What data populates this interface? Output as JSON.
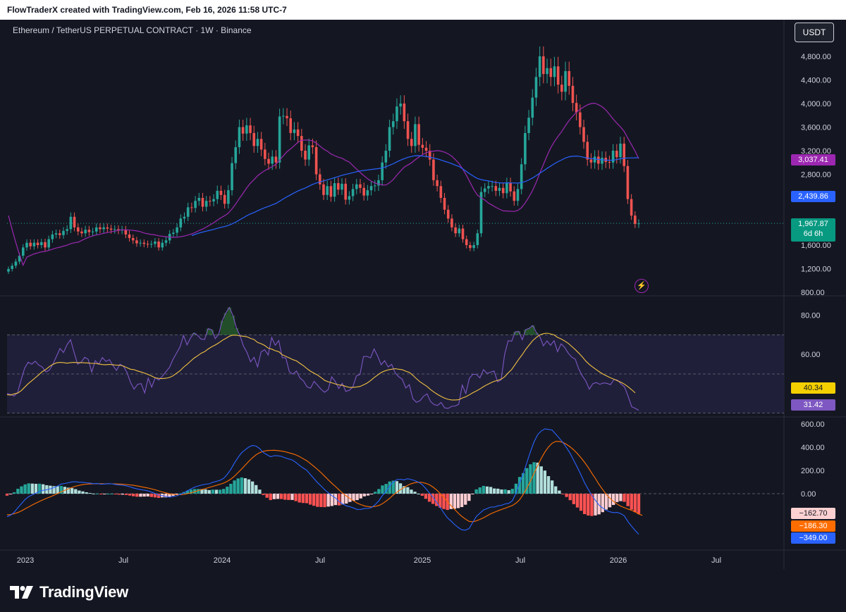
{
  "header": {
    "credit": "FlowTraderX created with TradingView.com, Feb 16, 2026 11:58 UTC-7"
  },
  "chart_header": {
    "symbol_line": "Ethereum / TetherUS PERPETUAL CONTRACT · 1W · Binance",
    "currency_button": "USDT"
  },
  "footer": {
    "logo_text": "TradingView"
  },
  "colors": {
    "background": "#141722",
    "up": "#26a69a",
    "down": "#ef5350",
    "ma_fast": "#9c27b0",
    "ma_slow": "#2962ff",
    "rsi_line": "#7e57c2",
    "rsi_ma": "#f0c040",
    "macd_line": "#2962ff",
    "signal_line": "#ff6d00"
  },
  "chart_data": [
    {
      "type": "candlestick",
      "title": "Ethereum / TetherUS PERPETUAL CONTRACT · 1W · Binance",
      "x_ticks": [
        "2023",
        "Jul",
        "2024",
        "Jul",
        "2025",
        "Jul",
        "2026",
        "Jul"
      ],
      "y_ticks": [
        "4,800.00",
        "4,400.00",
        "4,000.00",
        "3,600.00",
        "3,200.00",
        "2,800.00",
        "1,600.00",
        "1,200.00",
        "800.00"
      ],
      "ylim": [
        800,
        4800
      ],
      "price_tags": {
        "ma_fast": "3,037.41",
        "ma_slow": "2,439.86",
        "last": "1,967.87",
        "countdown": "6d 6h"
      },
      "closes": [
        1195,
        1250,
        1320,
        1420,
        1560,
        1640,
        1580,
        1640,
        1600,
        1650,
        1560,
        1700,
        1780,
        1800,
        1770,
        1840,
        1870,
        2080,
        1900,
        1830,
        1800,
        1860,
        1820,
        1830,
        1900,
        1870,
        1900,
        1880,
        1860,
        1870,
        1850,
        1860,
        1780,
        1720,
        1680,
        1630,
        1640,
        1620,
        1610,
        1620,
        1660,
        1560,
        1640,
        1680,
        1790,
        1810,
        1900,
        2050,
        2080,
        2240,
        2230,
        2350,
        2400,
        2250,
        2350,
        2340,
        2380,
        2520,
        2450,
        2300,
        2530,
        2990,
        3260,
        3600,
        3490,
        3630,
        3500,
        3280,
        3400,
        3220,
        3060,
        2980,
        3100,
        3000,
        3780,
        3790,
        3750,
        3500,
        3560,
        3450,
        3200,
        3050,
        3290,
        3260,
        2800,
        2630,
        2450,
        2600,
        2420,
        2650,
        2540,
        2640,
        2370,
        2430,
        2550,
        2630,
        2570,
        2440,
        2530,
        2600,
        2610,
        2700,
        3000,
        3200,
        3600,
        3700,
        3950,
        4000,
        3700,
        3400,
        3280,
        3650,
        3300,
        3250,
        3200,
        3050,
        2700,
        2600,
        2400,
        2200,
        2050,
        1900,
        1800,
        1880,
        1700,
        1600,
        1550,
        1600,
        1800,
        2500,
        2560,
        2600,
        2600,
        2520,
        2570,
        2480,
        2650,
        2510,
        2350,
        2550,
        2970,
        3500,
        3760,
        4100,
        4450,
        4800,
        4500,
        4600,
        4450,
        4630,
        4320,
        4200,
        4550,
        4300,
        4010,
        3850,
        3600,
        3350,
        3050,
        3000,
        3100,
        2980,
        3080,
        3010,
        3000,
        3200,
        3090,
        3320,
        2940,
        2380,
        2100,
        1960,
        1968
      ],
      "ma_fast_label": "3,037.41",
      "ma_slow_label": "2,439.86"
    },
    {
      "type": "line",
      "title": "RSI",
      "y_ticks": [
        "80.00",
        "60.00"
      ],
      "ylim": [
        28,
        90
      ],
      "bands": [
        70,
        50,
        30
      ],
      "series": [
        {
          "values": [
            40.0,
            39.5,
            38.7,
            40.5,
            47.0,
            53.0,
            56.0,
            55.0,
            56.5,
            54.5,
            53.5,
            51.0,
            52.0,
            55.0,
            59.0,
            63.0,
            61.0,
            65.0,
            67.5,
            61.0,
            55.0,
            56.0,
            58.5,
            57.5,
            51.0,
            56.8,
            55.0,
            58.4,
            56.4,
            57.3,
            54.3,
            51.8,
            55.0,
            53.9,
            50.7,
            45.6,
            42.2,
            44.7,
            45.1,
            40.3,
            47.8,
            43.3,
            48.1,
            46.8,
            48.8,
            51.1,
            53.3,
            57.4,
            60.6,
            63.8,
            69.7,
            64.9,
            68.4,
            71.0,
            69.8,
            67.8,
            67.7,
            73.2,
            72.6,
            68.1,
            70.4,
            77.3,
            81.2,
            84.0,
            79.9,
            73.5,
            69.6,
            64.2,
            61.0,
            56.2,
            58.5,
            53.6,
            61.3,
            62.4,
            59.7,
            68.6,
            64.7,
            67.1,
            58.3,
            58.2,
            51.1,
            49.9,
            51.5,
            47.9,
            46.4,
            43.4,
            42.7,
            46.2,
            44.2,
            42.1,
            40.6,
            42.0,
            48.5,
            46.2,
            42.6,
            45.2,
            41.1,
            41.6,
            43.4,
            49.0,
            49.7,
            58.9,
            59.0,
            58.2,
            62.8,
            59.2,
            54.7,
            56.8,
            53.6,
            54.9,
            50.5,
            48.6,
            47.3,
            42.8,
            44.5,
            37.3,
            35.5,
            36.3,
            38.6,
            39.8,
            35.9,
            34.3,
            33.9,
            35.4,
            32.6,
            32.4,
            33.4,
            33.6,
            34.5,
            44.3,
            40.0,
            47.7,
            49.8,
            49.8,
            48.0,
            52.2,
            50.3,
            50.9,
            51.5,
            46.0,
            47.0,
            60.0,
            67.0,
            66.8,
            71.5,
            71.8,
            67.5,
            72.7,
            73.4,
            74.8,
            71.2,
            69.1,
            64.4,
            66.9,
            64.7,
            67.0,
            61.4,
            65.4,
            63.6,
            60.7,
            58.6,
            57.6,
            52.6,
            49.0,
            46.4,
            42.2,
            45.0,
            45.6,
            44.7,
            45.4,
            45.2,
            44.5,
            47.2,
            46.8,
            44.8,
            43.3,
            38.5,
            33.2,
            32.4,
            31.4
          ]
        },
        {
          "values": [
            39.4,
            39.2,
            39.8,
            40.2,
            41.4,
            43.2,
            45.0,
            46.5,
            48.0,
            49.6,
            51.2,
            52.3,
            53.8,
            54.9,
            55.7,
            55.9,
            55.8,
            55.5,
            55.8,
            55.9,
            55.8,
            55.8,
            55.7,
            55.6,
            55.4,
            55.4,
            55.1,
            54.8,
            54.7,
            54.9,
            54.7,
            54.5,
            54.5,
            54.0,
            53.2,
            52.4,
            52.2,
            51.5,
            51.0,
            50.4,
            49.7,
            48.9,
            48.0,
            47.7,
            47.6,
            47.8,
            48.2,
            49.0,
            50.3,
            51.6,
            53.4,
            54.9,
            56.5,
            58.1,
            59.3,
            60.6,
            61.4,
            62.8,
            63.9,
            64.8,
            65.9,
            67.2,
            68.2,
            69.3,
            69.9,
            69.8,
            69.5,
            69.3,
            69.0,
            68.2,
            67.6,
            66.1,
            65.5,
            64.6,
            63.2,
            62.7,
            61.9,
            61.4,
            59.8,
            59.0,
            58.2,
            57.3,
            56.7,
            55.4,
            54.2,
            52.7,
            51.4,
            50.4,
            49.4,
            48.1,
            46.7,
            46.0,
            45.5,
            44.9,
            44.4,
            44.2,
            43.6,
            43.1,
            43.1,
            43.3,
            43.6,
            44.4,
            45.3,
            46.6,
            48.1,
            49.4,
            50.7,
            51.5,
            52.1,
            52.4,
            52.7,
            52.4,
            52.2,
            51.4,
            50.8,
            49.3,
            47.6,
            46.0,
            44.8,
            43.6,
            42.0,
            40.7,
            39.5,
            38.5,
            37.6,
            37.0,
            36.7,
            36.7,
            36.8,
            37.7,
            38.3,
            39.3,
            40.4,
            41.3,
            42.3,
            43.5,
            44.5,
            45.4,
            46.2,
            46.7,
            47.3,
            48.6,
            50.5,
            52.3,
            54.9,
            57.5,
            59.9,
            62.6,
            64.9,
            67.1,
            68.7,
            70.0,
            70.6,
            70.9,
            70.5,
            70.0,
            68.7,
            67.9,
            66.9,
            65.7,
            64.1,
            62.5,
            60.7,
            58.8,
            56.6,
            54.9,
            53.5,
            52.2,
            50.9,
            49.8,
            48.9,
            48.0,
            47.3,
            46.5,
            45.7,
            44.7,
            43.4,
            41.9,
            40.3
          ]
        }
      ],
      "value_tags": [
        "40.34",
        "31.42"
      ]
    },
    {
      "type": "bar",
      "title": "MACD",
      "y_ticks": [
        "600.00",
        "400.00",
        "200.00",
        "0.00"
      ],
      "ylim": [
        -400,
        650
      ],
      "series": [
        {
          "values": [
            -198.0,
            -185.0,
            -160.0,
            -120.0,
            -85.0,
            -50.0,
            -25.0,
            -10.0,
            4.0,
            20.0,
            29.0,
            34.0,
            42.0,
            52.0,
            66.0,
            83.0,
            88.0,
            94.0,
            102.0,
            103.0,
            99.0,
            98.0,
            94.0,
            90.0,
            86.0,
            87.0,
            82.0,
            83.0,
            86.0,
            85.0,
            80.0,
            75.0,
            73.0,
            68.0,
            60.0,
            50.0,
            41.0,
            35.0,
            30.0,
            25.0,
            14.0,
            2.0,
            -12.0,
            -17.0,
            -25.0,
            -29.0,
            -25.0,
            -18.0,
            -6.0,
            8.0,
            26.0,
            42.0,
            57.0,
            67.0,
            75.0,
            82.0,
            85.0,
            98.0,
            106.0,
            115.0,
            132.0,
            166.0,
            210.0,
            265.0,
            313.0,
            353.0,
            379.0,
            402.0,
            415.0,
            409.0,
            388.0,
            354.0,
            336.0,
            318.0,
            327.0,
            326.0,
            321.0,
            309.0,
            299.0,
            290.0,
            270.0,
            244.0,
            222.0,
            202.0,
            166.0,
            131.0,
            96.0,
            66.0,
            34.0,
            8.0,
            -17.0,
            -37.0,
            -69.0,
            -88.0,
            -105.0,
            -112.0,
            -123.0,
            -136.0,
            -135.0,
            -128.0,
            -127.0,
            -119.0,
            -94.0,
            -61.0,
            -15.0,
            20.0,
            65.0,
            101.0,
            121.0,
            124.0,
            119.0,
            129.0,
            121.0,
            112.0,
            99.0,
            79.0,
            45.0,
            8.0,
            -31.0,
            -74.0,
            -119.0,
            -165.0,
            -208.0,
            -235.0,
            -266.0,
            -291.0,
            -311.0,
            -314.0,
            -300.0,
            -248.0,
            -197.0,
            -167.0,
            -140.0,
            -128.0,
            -115.0,
            -115.0,
            -104.0,
            -100.0,
            -88.0,
            -83.0,
            -60.0,
            5.0,
            92.0,
            171.0,
            267.0,
            361.0,
            446.0,
            507.0,
            540.0,
            558.0,
            553.0,
            548.0,
            513.0,
            477.0,
            440.0,
            396.0,
            347.0,
            287.0,
            226.0,
            162.0,
            94.0,
            38.0,
            -15.0,
            -57.0,
            -98.0,
            -123.0,
            -143.0,
            -156.0,
            -163.0,
            -161.0,
            -171.0,
            -190.0,
            -239.0,
            -280.0,
            -316.0,
            -349.0
          ]
        },
        {
          "values": [
            -181.0,
            -180.0,
            -172.0,
            -162.0,
            -148.0,
            -130.0,
            -114.0,
            -97.0,
            -81.0,
            -66.0,
            -52.0,
            -39.0,
            -27.0,
            -13.0,
            2.0,
            16.0,
            29.0,
            42.0,
            54.0,
            64.0,
            72.0,
            78.0,
            82.0,
            84.0,
            85.0,
            86.0,
            86.0,
            85.0,
            86.0,
            85.0,
            84.0,
            83.0,
            81.0,
            79.0,
            76.0,
            72.0,
            67.0,
            61.0,
            55.0,
            49.0,
            42.0,
            34.0,
            24.0,
            15.0,
            7.0,
            -1.0,
            -6.0,
            -9.0,
            -9.0,
            -6.0,
            0.0,
            7.0,
            17.0,
            27.0,
            36.0,
            45.0,
            54.0,
            63.0,
            72.0,
            81.0,
            91.0,
            106.0,
            125.0,
            151.0,
            182.0,
            213.0,
            246.0,
            279.0,
            310.0,
            335.0,
            353.0,
            365.0,
            371.0,
            373.0,
            374.0,
            371.0,
            367.0,
            361.0,
            353.0,
            344.0,
            334.0,
            320.0,
            302.0,
            284.0,
            260.0,
            235.0,
            209.0,
            181.0,
            150.0,
            119.0,
            89.0,
            61.0,
            32.0,
            4.0,
            -20.0,
            -41.0,
            -62.0,
            -81.0,
            -94.0,
            -105.0,
            -111.0,
            -114.0,
            -110.0,
            -101.0,
            -86.0,
            -64.0,
            -40.0,
            -11.0,
            13.0,
            35.0,
            54.0,
            73.0,
            86.0,
            95.0,
            99.0,
            97.0,
            89.0,
            77.0,
            57.0,
            32.0,
            2.0,
            -33.0,
            -68.0,
            -103.0,
            -136.0,
            -167.0,
            -196.0,
            -219.0,
            -238.0,
            -242.0,
            -234.0,
            -221.0,
            -207.0,
            -190.0,
            -173.0,
            -160.0,
            -147.0,
            -136.0,
            -125.0,
            -113.0,
            -102.0,
            -81.0,
            -52.0,
            -6.0,
            47.0,
            108.0,
            175.0,
            240.0,
            305.0,
            359.0,
            402.0,
            434.0,
            450.0,
            450.0,
            441.0,
            424.0,
            403.0,
            377.0,
            345.0,
            309.0,
            270.0,
            226.0,
            177.0,
            130.0,
            80.0,
            36.0,
            -6.0,
            -39.0,
            -66.0,
            -89.0,
            -107.0,
            -120.0,
            -132.0,
            -143.0,
            -157.0,
            -176.0,
            -186.3
          ]
        }
      ],
      "value_tags": [
        "−162.70",
        "−186.30",
        "−349.00"
      ]
    }
  ]
}
